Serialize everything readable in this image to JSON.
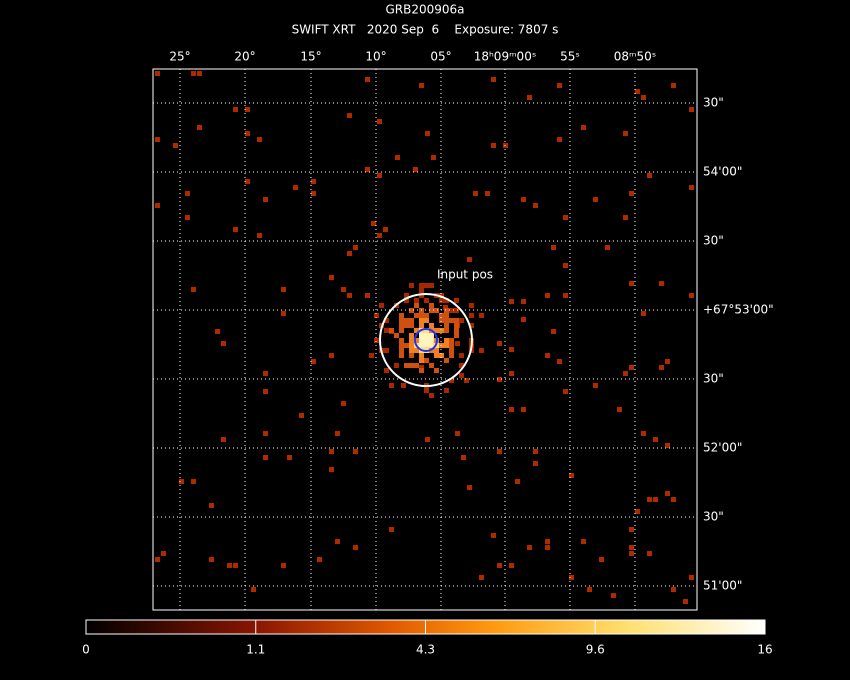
{
  "header": {
    "title": "GRB200906a",
    "subtitle": "SWIFT XRT   2020 Sep  6    Exposure: 7807 s"
  },
  "image": {
    "annotation": "Input pos",
    "ra_labels": [
      "25°",
      "20°",
      "15°",
      "10°",
      "05°",
      "18ʰ09ᵐ00ˢ",
      "55ˢ",
      "08ᵐ50ˢ"
    ],
    "dec_labels": [
      "30\"",
      "54'00\"",
      "30\"",
      "+67°53'00\"",
      "30\"",
      "52'00\"",
      "30\"",
      "51'00\""
    ]
  },
  "colorbar": {
    "labels": [
      "0",
      "1.1",
      "4.3",
      "9.6",
      "16"
    ]
  }
}
